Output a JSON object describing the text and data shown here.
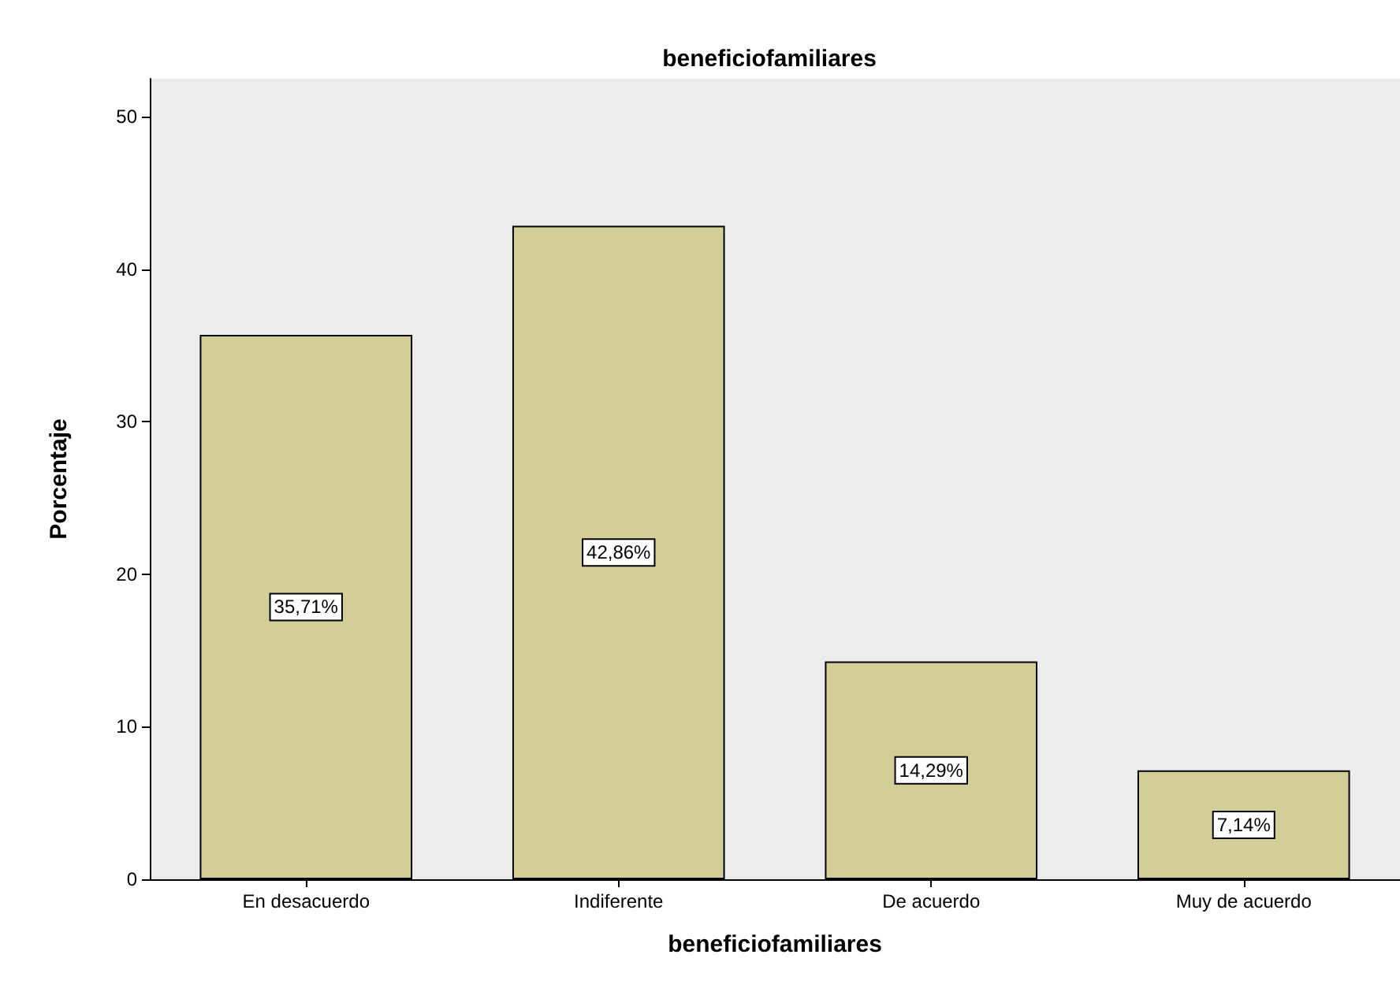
{
  "chart_data": {
    "type": "bar",
    "title": "beneficiofamiliares",
    "xlabel": "beneficiofamiliares",
    "ylabel": "Porcentaje",
    "categories": [
      "En desacuerdo",
      "Indiferente",
      "De acuerdo",
      "Muy de acuerdo"
    ],
    "values": [
      35.71,
      42.86,
      14.29,
      7.14
    ],
    "value_labels": [
      "35,71%",
      "42,86%",
      "14,29%",
      "7,14%"
    ],
    "color": "#d3ce98",
    "ylim": [
      0,
      52.5
    ],
    "yticks": [
      0,
      10,
      20,
      30,
      40,
      50
    ],
    "grid": false
  }
}
